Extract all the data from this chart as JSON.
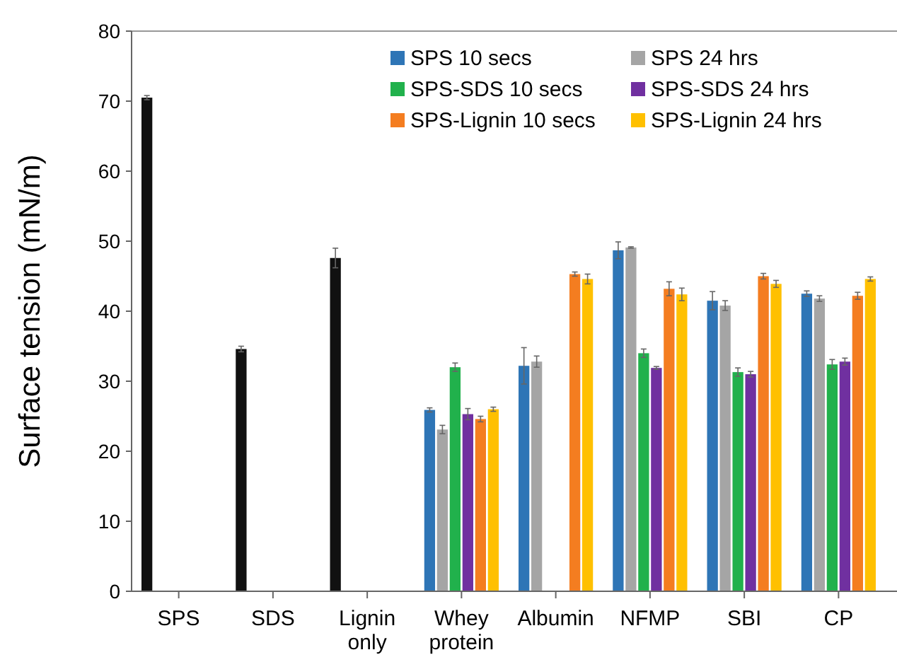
{
  "chart_data": {
    "type": "bar",
    "ylabel": "Surface tension (mN/m)",
    "categories": [
      "SPS",
      "SDS",
      "Lignin only",
      "Whey protein",
      "Albumin",
      "NFMP",
      "SBI",
      "CP"
    ],
    "ylim": [
      0,
      80
    ],
    "yticks": [
      0,
      10,
      20,
      30,
      40,
      50,
      60,
      70,
      80
    ],
    "grid": false,
    "legend": "top right",
    "series": [
      {
        "name": "SPS 10 secs",
        "color": "#2e75b6",
        "colors": [
          "#111111",
          "#111111",
          "#111111",
          "#2e75b6",
          "#2e75b6",
          "#2e75b6",
          "#2e75b6",
          "#2e75b6"
        ],
        "values": [
          70.5,
          34.6,
          47.6,
          25.9,
          32.2,
          48.7,
          41.5,
          42.5
        ],
        "errors": [
          0.3,
          0.4,
          1.4,
          0.3,
          2.6,
          1.2,
          1.3,
          0.4
        ]
      },
      {
        "name": "SPS 24 hrs",
        "color": "#a5a5a5",
        "values": [
          null,
          null,
          null,
          23.1,
          32.8,
          49.1,
          40.8,
          41.8
        ],
        "errors": [
          null,
          null,
          null,
          0.6,
          0.8,
          0.1,
          0.7,
          0.4
        ]
      },
      {
        "name": "SPS-SDS 10 secs",
        "color": "#21b14c",
        "values": [
          null,
          null,
          null,
          32,
          null,
          34,
          31.3,
          32.4
        ],
        "errors": [
          null,
          null,
          null,
          0.6,
          null,
          0.6,
          0.6,
          0.7
        ]
      },
      {
        "name": "SPS-SDS 24 hrs",
        "color": "#7030a0",
        "values": [
          null,
          null,
          null,
          25.3,
          null,
          31.9,
          31,
          32.8
        ],
        "errors": [
          null,
          null,
          null,
          0.8,
          null,
          0.2,
          0.4,
          0.5
        ]
      },
      {
        "name": "SPS-Lignin 10 secs",
        "color": "#f47d20",
        "values": [
          null,
          null,
          null,
          24.6,
          45.3,
          43.2,
          45,
          42.2
        ],
        "errors": [
          null,
          null,
          null,
          0.4,
          0.3,
          1,
          0.4,
          0.5
        ]
      },
      {
        "name": "SPS-Lignin 24 hrs",
        "color": "#ffc000",
        "values": [
          null,
          null,
          null,
          26,
          44.6,
          42.4,
          43.9,
          44.6
        ],
        "errors": [
          null,
          null,
          null,
          0.3,
          0.7,
          0.9,
          0.5,
          0.3
        ]
      }
    ]
  }
}
